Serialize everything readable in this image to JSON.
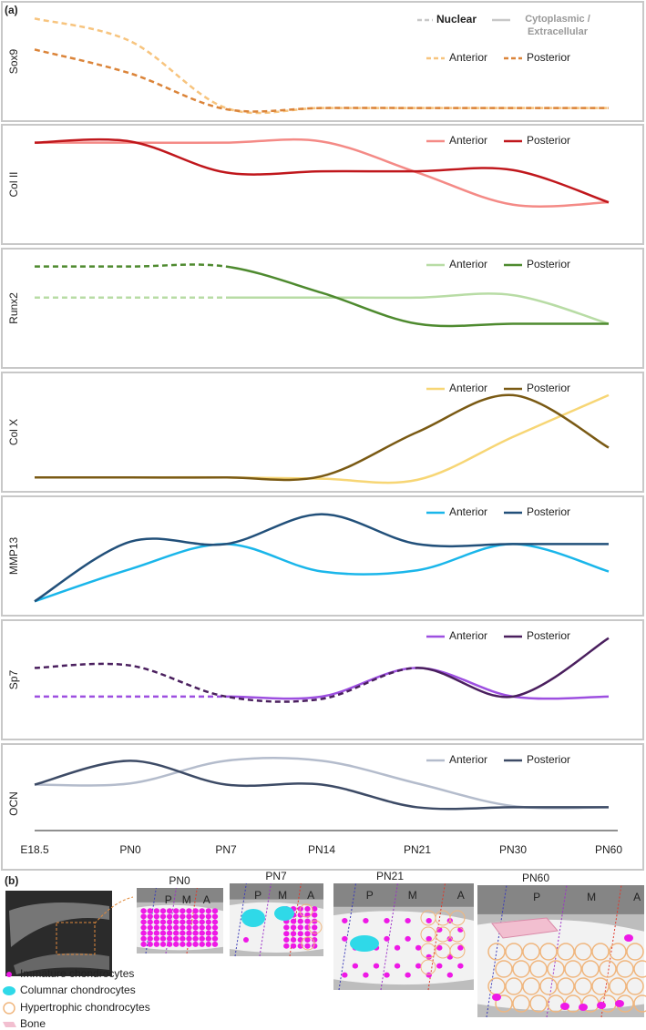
{
  "panel_labels": [
    "(a)",
    "(b)"
  ],
  "categories": [
    "E18.5",
    "PN0",
    "PN7",
    "PN14",
    "PN21",
    "PN30",
    "PN60"
  ],
  "style_legend": [
    {
      "name": "Nuclear",
      "dashed": true
    },
    {
      "name": "Cytoplasmic / Extracellular",
      "dashed": false
    }
  ],
  "chart_data": [
    {
      "type": "line",
      "ylabel": "Sox9",
      "ylim": [
        0,
        1
      ],
      "series": [
        {
          "name": "Anterior",
          "color": "#f7c47e",
          "dashed_to": 6,
          "values": [
            0.86,
            0.67,
            0.11,
            0.11,
            0.11,
            0.11,
            0.11
          ]
        },
        {
          "name": "Posterior",
          "color": "#db8439",
          "dashed_to": 6,
          "values": [
            0.6,
            0.4,
            0.1,
            0.11,
            0.11,
            0.11,
            0.11
          ]
        }
      ]
    },
    {
      "type": "line",
      "ylabel": "Col II",
      "ylim": [
        0,
        1
      ],
      "series": [
        {
          "name": "Anterior",
          "color": "#f48a86",
          "values": [
            0.85,
            0.85,
            0.85,
            0.86,
            0.6,
            0.33,
            0.35
          ]
        },
        {
          "name": "Posterior",
          "color": "#c0171c",
          "values": [
            0.85,
            0.86,
            0.6,
            0.61,
            0.61,
            0.62,
            0.35
          ]
        }
      ]
    },
    {
      "type": "line",
      "ylabel": "Runx2",
      "ylim": [
        0,
        1
      ],
      "series": [
        {
          "name": "Anterior",
          "color": "#b8dca5",
          "dashed_to": 2,
          "values": [
            0.59,
            0.59,
            0.59,
            0.59,
            0.59,
            0.61,
            0.37
          ]
        },
        {
          "name": "Posterior",
          "color": "#4e8a2f",
          "dashed_to": 2,
          "values": [
            0.85,
            0.85,
            0.85,
            0.63,
            0.37,
            0.37,
            0.37
          ]
        }
      ]
    },
    {
      "type": "line",
      "ylabel": "Col X",
      "ylim": [
        0,
        1
      ],
      "series": [
        {
          "name": "Anterior",
          "color": "#f7d675",
          "values": [
            0.12,
            0.12,
            0.12,
            0.11,
            0.1,
            0.46,
            0.81
          ]
        },
        {
          "name": "Posterior",
          "color": "#7a5a14",
          "values": [
            0.12,
            0.12,
            0.12,
            0.13,
            0.5,
            0.81,
            0.37
          ]
        }
      ]
    },
    {
      "type": "line",
      "ylabel": "MMP13",
      "ylim": [
        0,
        1
      ],
      "series": [
        {
          "name": "Anterior",
          "color": "#1ab6ea",
          "values": [
            0.12,
            0.39,
            0.6,
            0.37,
            0.38,
            0.6,
            0.37
          ]
        },
        {
          "name": "Posterior",
          "color": "#22507a",
          "values": [
            0.12,
            0.62,
            0.6,
            0.85,
            0.6,
            0.6,
            0.6
          ]
        }
      ]
    },
    {
      "type": "line",
      "ylabel": "Sp7",
      "ylim": [
        0,
        1
      ],
      "series": [
        {
          "name": "Anterior",
          "color": "#9d4fe0",
          "dashed_to": 2,
          "values": [
            0.36,
            0.36,
            0.36,
            0.36,
            0.6,
            0.36,
            0.36
          ]
        },
        {
          "name": "Posterior",
          "color": "#4a1f5e",
          "dashed_to": 4,
          "values": [
            0.6,
            0.62,
            0.36,
            0.34,
            0.6,
            0.36,
            0.85
          ]
        }
      ]
    },
    {
      "type": "line",
      "ylabel": "OCN",
      "ylim": [
        0,
        1
      ],
      "series": [
        {
          "name": "Anterior",
          "color": "#b4bccc",
          "values": [
            0.66,
            0.67,
            0.86,
            0.86,
            0.67,
            0.48,
            0.47
          ]
        },
        {
          "name": "Posterior",
          "color": "#3d4b66",
          "values": [
            0.66,
            0.86,
            0.66,
            0.66,
            0.47,
            0.47,
            0.47
          ]
        }
      ]
    }
  ],
  "panel_b": {
    "stages": [
      "PN0",
      "PN7",
      "PN21",
      "PN60"
    ],
    "zones": [
      "P",
      "M",
      "A"
    ],
    "legend": [
      "Immature chondrocytes",
      "Columnar chondrocytes",
      "Hypertrophic chondrocytes",
      "Bone"
    ]
  }
}
